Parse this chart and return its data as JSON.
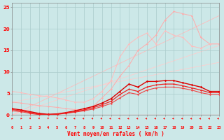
{
  "x": [
    0,
    1,
    2,
    3,
    4,
    5,
    6,
    7,
    8,
    9,
    10,
    11,
    12,
    13,
    14,
    15,
    16,
    17,
    18,
    19,
    20,
    21,
    22,
    23
  ],
  "line_straightA": [
    0,
    1,
    2,
    3,
    4,
    5,
    6,
    7,
    8,
    9,
    10,
    11,
    12,
    13,
    14,
    15,
    16,
    17,
    18,
    19,
    20,
    21,
    22,
    23
  ],
  "line_straightB": [
    0,
    0.7,
    1.4,
    2.1,
    2.8,
    3.5,
    4.2,
    4.9,
    5.6,
    6.3,
    7.0,
    7.7,
    8.4,
    9.1,
    9.8,
    10.5,
    11.2,
    11.9,
    12.6,
    13.3,
    14.0,
    14.7,
    15.4,
    16.1
  ],
  "line_straightC": [
    3,
    3.4,
    3.8,
    4.2,
    4.6,
    5.0,
    5.4,
    5.8,
    6.2,
    6.6,
    7.0,
    7.4,
    7.8,
    8.2,
    8.6,
    9.0,
    9.4,
    9.8,
    10.2,
    10.6,
    11.0,
    11.4,
    11.8,
    12.2
  ],
  "line_peak1": [
    1.5,
    1.2,
    0.8,
    0.4,
    0.2,
    0.3,
    0.6,
    1.0,
    1.5,
    2.0,
    2.8,
    3.8,
    5.5,
    7.2,
    6.5,
    7.8,
    7.8,
    8.0,
    8.0,
    7.5,
    7.0,
    6.5,
    5.5,
    5.5
  ],
  "line_peak2": [
    1.3,
    1.0,
    0.6,
    0.2,
    0.1,
    0.2,
    0.5,
    0.8,
    1.2,
    1.7,
    2.4,
    3.2,
    4.8,
    6.0,
    5.5,
    6.5,
    7.0,
    7.2,
    7.2,
    6.8,
    6.3,
    5.8,
    5.2,
    5.2
  ],
  "line_peak3": [
    1.0,
    0.8,
    0.4,
    0.1,
    0.1,
    0.2,
    0.4,
    0.7,
    1.0,
    1.4,
    2.0,
    2.7,
    4.0,
    5.2,
    4.8,
    5.8,
    6.3,
    6.5,
    6.5,
    6.2,
    5.8,
    5.2,
    4.8,
    4.8
  ],
  "line_lighta": [
    5.5,
    5.2,
    4.8,
    4.5,
    4.3,
    4.0,
    3.5,
    3.0,
    3.0,
    3.8,
    5.5,
    8.0,
    13.5,
    16.5,
    18.0,
    19.0,
    16.5,
    19.5,
    18.5,
    18.0,
    16.0,
    15.5,
    16.5,
    16.5
  ],
  "line_lightb": [
    3.0,
    2.8,
    2.5,
    2.2,
    2.0,
    1.8,
    1.5,
    1.3,
    1.2,
    2.0,
    4.0,
    6.0,
    9.0,
    11.5,
    15.0,
    16.5,
    18.5,
    22.0,
    24.0,
    23.5,
    23.0,
    18.0,
    16.5,
    16.5
  ],
  "background": "#cce8e8",
  "grid_color": "#aacccc",
  "xlabel": "Vent moyen/en rafales ( km/h )",
  "ylim": [
    0,
    26
  ],
  "xlim": [
    0,
    23
  ],
  "arrow_angles_deg": [
    215,
    200,
    175,
    170,
    175,
    185,
    270,
    275,
    280,
    280,
    285,
    270,
    270,
    270,
    270,
    270,
    275,
    270,
    275,
    270,
    265,
    265,
    270,
    270
  ]
}
